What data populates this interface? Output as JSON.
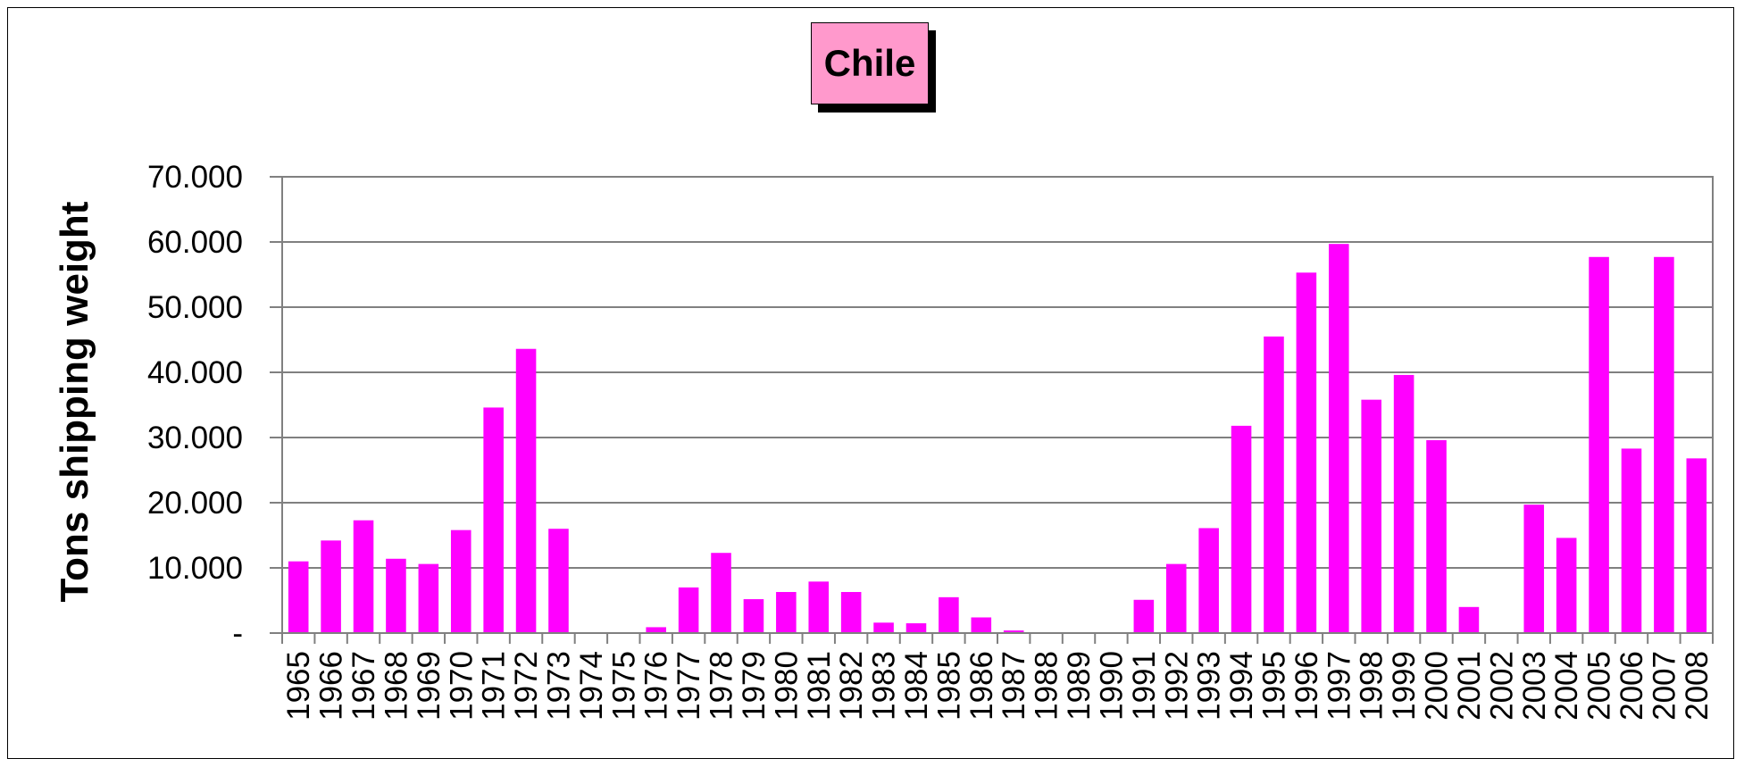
{
  "colors": {
    "bar": "#ff00ff",
    "title_bg": "#ff99cc",
    "axis": "#808080",
    "grid": "#000000"
  },
  "chart_data": {
    "type": "bar",
    "title": "Chile",
    "xlabel": "",
    "ylabel": "Tons shipping weight",
    "ylim": [
      0,
      70000
    ],
    "yticks": [
      0,
      10000,
      20000,
      30000,
      40000,
      50000,
      60000,
      70000
    ],
    "ytick_labels": [
      "-",
      "10.000",
      "20.000",
      "30.000",
      "40.000",
      "50.000",
      "60.000",
      "70.000"
    ],
    "grid": true,
    "legend": "none",
    "categories": [
      "1965",
      "1966",
      "1967",
      "1968",
      "1969",
      "1970",
      "1971",
      "1972",
      "1973",
      "1974",
      "1975",
      "1976",
      "1977",
      "1978",
      "1979",
      "1980",
      "1981",
      "1982",
      "1983",
      "1984",
      "1985",
      "1986",
      "1987",
      "1988",
      "1989",
      "1990",
      "1991",
      "1992",
      "1993",
      "1994",
      "1995",
      "1996",
      "1997",
      "1998",
      "1999",
      "2000",
      "2001",
      "2002",
      "2003",
      "2004",
      "2005",
      "2006",
      "2007",
      "2008"
    ],
    "values": [
      11000,
      14200,
      17300,
      11400,
      10600,
      15800,
      34600,
      43600,
      16000,
      0,
      0,
      900,
      7000,
      12300,
      5200,
      6300,
      7900,
      6300,
      1600,
      1500,
      5500,
      2400,
      400,
      0,
      0,
      0,
      5100,
      10600,
      16100,
      31800,
      45500,
      55300,
      59700,
      35800,
      39600,
      29600,
      4000,
      0,
      19700,
      14600,
      57700,
      28300,
      57700,
      26800
    ]
  }
}
